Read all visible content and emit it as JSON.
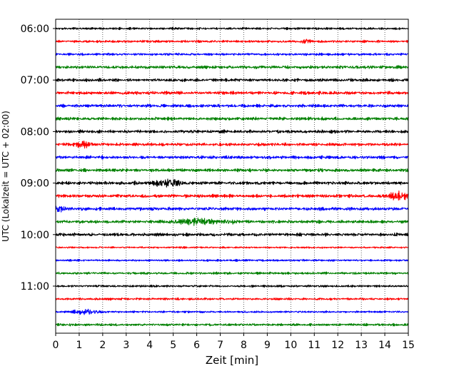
{
  "chart_data": {
    "type": "line",
    "subtype": "helicorder seismogram",
    "title": "",
    "xlabel": "Zeit  [min]",
    "ylabel": "UTC (Lokalzeit = UTC + 02:00)",
    "xlim": [
      0,
      15
    ],
    "x_ticks": [
      0,
      1,
      2,
      3,
      4,
      5,
      6,
      7,
      8,
      9,
      10,
      11,
      12,
      13,
      14,
      15
    ],
    "x_tick_labels": [
      "0",
      "1",
      "2",
      "3",
      "4",
      "5",
      "6",
      "7",
      "8",
      "9",
      "10",
      "11",
      "12",
      "13",
      "14",
      "15"
    ],
    "y_tick_labels": [
      "06:00",
      "07:00",
      "08:00",
      "09:00",
      "10:00",
      "11:00"
    ],
    "trace_interval_minutes": 15,
    "grid": "vertical dotted lines at each minute",
    "trace_colors": [
      "#000000",
      "#ff0000",
      "#0000ff",
      "#008000"
    ],
    "traces": [
      {
        "start": "06:00",
        "amplitude": 0.28,
        "events": []
      },
      {
        "start": "06:15",
        "amplitude": 0.3,
        "events": [
          {
            "minute": 10.6,
            "amplitude": 0.65,
            "duration": 0.4
          }
        ]
      },
      {
        "start": "06:30",
        "amplitude": 0.3,
        "events": []
      },
      {
        "start": "06:45",
        "amplitude": 0.42,
        "events": []
      },
      {
        "start": "07:00",
        "amplitude": 0.4,
        "events": []
      },
      {
        "start": "07:15",
        "amplitude": 0.4,
        "events": []
      },
      {
        "start": "07:30",
        "amplitude": 0.4,
        "events": []
      },
      {
        "start": "07:45",
        "amplitude": 0.4,
        "events": []
      },
      {
        "start": "08:00",
        "amplitude": 0.4,
        "events": []
      },
      {
        "start": "08:15",
        "amplitude": 0.4,
        "events": [
          {
            "minute": 1.2,
            "amplitude": 0.95,
            "duration": 0.55
          }
        ]
      },
      {
        "start": "08:30",
        "amplitude": 0.4,
        "events": []
      },
      {
        "start": "08:45",
        "amplitude": 0.4,
        "events": []
      },
      {
        "start": "09:00",
        "amplitude": 0.42,
        "events": [
          {
            "minute": 4.8,
            "amplitude": 1.15,
            "duration": 0.75
          }
        ]
      },
      {
        "start": "09:15",
        "amplitude": 0.42,
        "events": [
          {
            "minute": 14.6,
            "amplitude": 1.05,
            "duration": 0.55
          }
        ]
      },
      {
        "start": "09:30",
        "amplitude": 0.42,
        "events": [
          {
            "minute": 0.1,
            "amplitude": 0.8,
            "duration": 0.5
          }
        ]
      },
      {
        "start": "09:45",
        "amplitude": 0.4,
        "events": [
          {
            "minute": 6.0,
            "amplitude": 0.95,
            "duration": 1.3
          },
          {
            "minute": 7.4,
            "amplitude": 0.6,
            "duration": 0.5
          }
        ]
      },
      {
        "start": "10:00",
        "amplitude": 0.4,
        "events": []
      },
      {
        "start": "10:15",
        "amplitude": 0.22,
        "events": []
      },
      {
        "start": "10:30",
        "amplitude": 0.25,
        "events": []
      },
      {
        "start": "10:45",
        "amplitude": 0.3,
        "events": []
      },
      {
        "start": "11:00",
        "amplitude": 0.28,
        "events": []
      },
      {
        "start": "11:15",
        "amplitude": 0.28,
        "events": []
      },
      {
        "start": "11:30",
        "amplitude": 0.25,
        "events": [
          {
            "minute": 1.3,
            "amplitude": 0.8,
            "duration": 0.6
          }
        ]
      },
      {
        "start": "11:45",
        "amplitude": 0.3,
        "events": []
      }
    ]
  }
}
